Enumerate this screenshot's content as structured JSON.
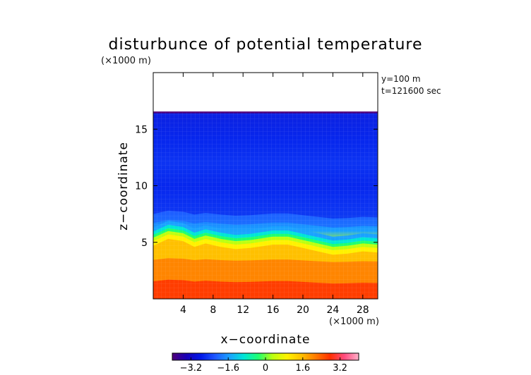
{
  "chart_data": {
    "type": "heatmap",
    "title": "disturbunce of potential temperature",
    "yunit": "(×1000 m)",
    "xunit": "(×1000 m)",
    "xlabel": "x−coordinate",
    "ylabel": "z−coordinate",
    "annotations": [
      "y=100 m",
      "t=121600 sec"
    ],
    "xlim": [
      0,
      30
    ],
    "ylim": [
      0,
      20
    ],
    "xticks": [
      {
        "value": 4,
        "label": "4"
      },
      {
        "value": 8,
        "label": "8"
      },
      {
        "value": 12,
        "label": "12"
      },
      {
        "value": 16,
        "label": "16"
      },
      {
        "value": 20,
        "label": "20"
      },
      {
        "value": 24,
        "label": "24"
      },
      {
        "value": 28,
        "label": "28"
      }
    ],
    "yticks": [
      {
        "value": 5,
        "label": "5"
      },
      {
        "value": 10,
        "label": "10"
      },
      {
        "value": 15,
        "label": "15"
      }
    ],
    "field_top": 16.5,
    "colorbar": {
      "range": [
        -4,
        4
      ],
      "ticks": [
        {
          "value": -3.2,
          "label": "−3.2"
        },
        {
          "value": -1.6,
          "label": "−1.6"
        },
        {
          "value": 0,
          "label": "0"
        },
        {
          "value": 1.6,
          "label": "1.6"
        },
        {
          "value": 3.2,
          "label": "3.2"
        }
      ]
    },
    "colors": [
      "#50007a",
      "#1800b8",
      "#0018e8",
      "#1e58ff",
      "#1aa2ff",
      "#00e6d6",
      "#20ff70",
      "#bcff10",
      "#fff200",
      "#ffc000",
      "#ff7a00",
      "#ff3000",
      "#ff4c80",
      "#ffb0c8"
    ],
    "z_levels": [
      0,
      1,
      2,
      3,
      4,
      5,
      6,
      8,
      10,
      12,
      14,
      16,
      16.5
    ],
    "z_profile": [
      3.3,
      3.0,
      2.6,
      2.1,
      1.5,
      0.2,
      -1.6,
      -2.2,
      -2.5,
      -2.4,
      -2.6,
      -3.3,
      -3.6
    ],
    "interface_z": [
      5.4,
      6.0,
      5.8,
      5.3,
      5.6,
      5.3,
      5.1,
      5.2,
      5.5,
      5.5,
      5.2,
      4.9,
      4.6,
      4.7,
      4.9,
      4.8
    ],
    "interface_x": [
      0,
      2,
      4,
      5.5,
      7,
      9,
      11,
      13,
      16,
      18,
      20,
      22,
      24,
      26,
      28,
      30
    ]
  }
}
